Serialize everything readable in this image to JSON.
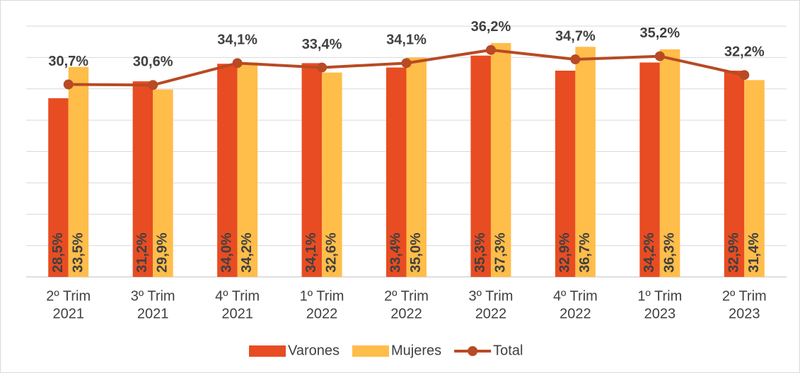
{
  "chart_data": {
    "type": "bar",
    "categories": [
      [
        "2º Trim",
        "2021"
      ],
      [
        "3º Trim",
        "2021"
      ],
      [
        "4º Trim",
        "2021"
      ],
      [
        "1º Trim",
        "2022"
      ],
      [
        "2º Trim",
        "2022"
      ],
      [
        "3º Trim",
        "2022"
      ],
      [
        "4º Trim",
        "2022"
      ],
      [
        "1º Trim",
        "2023"
      ],
      [
        "2º Trim",
        "2023"
      ]
    ],
    "series": [
      {
        "name": "Varones",
        "type": "bar",
        "color": "#e84c22",
        "values": [
          28.5,
          31.2,
          34.0,
          34.1,
          33.4,
          35.3,
          32.9,
          34.2,
          32.9
        ],
        "value_labels": [
          "28,5%",
          "31,2%",
          "34,0%",
          "34,1%",
          "33,4%",
          "35,3%",
          "32,9%",
          "34,2%",
          "32,9%"
        ]
      },
      {
        "name": "Mujeres",
        "type": "bar",
        "color": "#ffbd4a",
        "values": [
          33.5,
          29.9,
          34.2,
          32.6,
          35.0,
          37.3,
          36.7,
          36.3,
          31.4
        ],
        "value_labels": [
          "33,5%",
          "29,9%",
          "34,2%",
          "32,6%",
          "35,0%",
          "37,3%",
          "36,7%",
          "36,3%",
          "31,4%"
        ]
      },
      {
        "name": "Total",
        "type": "line",
        "color": "#b84a24",
        "values": [
          30.7,
          30.6,
          34.1,
          33.4,
          34.1,
          36.2,
          34.7,
          35.2,
          32.2
        ],
        "value_labels": [
          "30,7%",
          "30,6%",
          "34,1%",
          "33,4%",
          "34,1%",
          "36,2%",
          "34,7%",
          "35,2%",
          "32,2%"
        ]
      }
    ],
    "ylim": [
      0,
      40
    ],
    "yticks": [
      0,
      5,
      10,
      15,
      20,
      25,
      30,
      35,
      40
    ],
    "grid": true,
    "legend": "bottom"
  }
}
